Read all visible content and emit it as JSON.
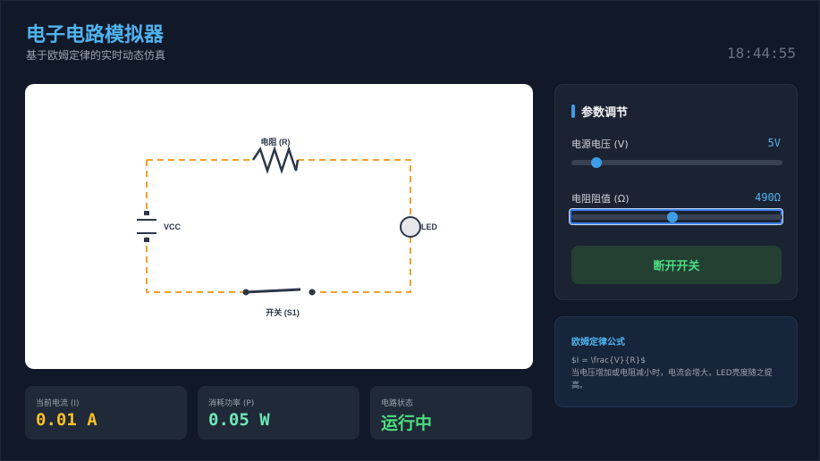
{
  "header": {
    "title": "电子电路模拟器",
    "subtitle": "基于欧姆定律的实时动态仿真",
    "clock": "18:44:55"
  },
  "circuit": {
    "resistor_label": "电阻 (R)",
    "battery_label": "VCC",
    "led_label": "LED",
    "switch_label": "开关 (S1)",
    "wire_color": "#f0a030"
  },
  "stats": [
    {
      "label": "当前电流 (I)",
      "value": "0.01 A",
      "color": "#fbbf24"
    },
    {
      "label": "消耗功率 (P)",
      "value": "0.05 W",
      "color": "#6ee7b7"
    },
    {
      "label": "电路状态",
      "value": "运行中",
      "color": "#4ade80"
    }
  ],
  "controls": {
    "title": "参数调节",
    "voltage": {
      "label": "电源电压 (V)",
      "value": "5V",
      "fraction": 0.12
    },
    "resistance": {
      "label": "电阻阻值 (Ω)",
      "value": "490Ω",
      "fraction": 0.48
    },
    "toggle_label": "断开开关"
  },
  "formula": {
    "title": "欧姆定律公式",
    "formula": "$I = \\frac{V}{R}$",
    "description": "当电压增加或电阻减小时，电流会增大，LED亮度随之提高。"
  }
}
